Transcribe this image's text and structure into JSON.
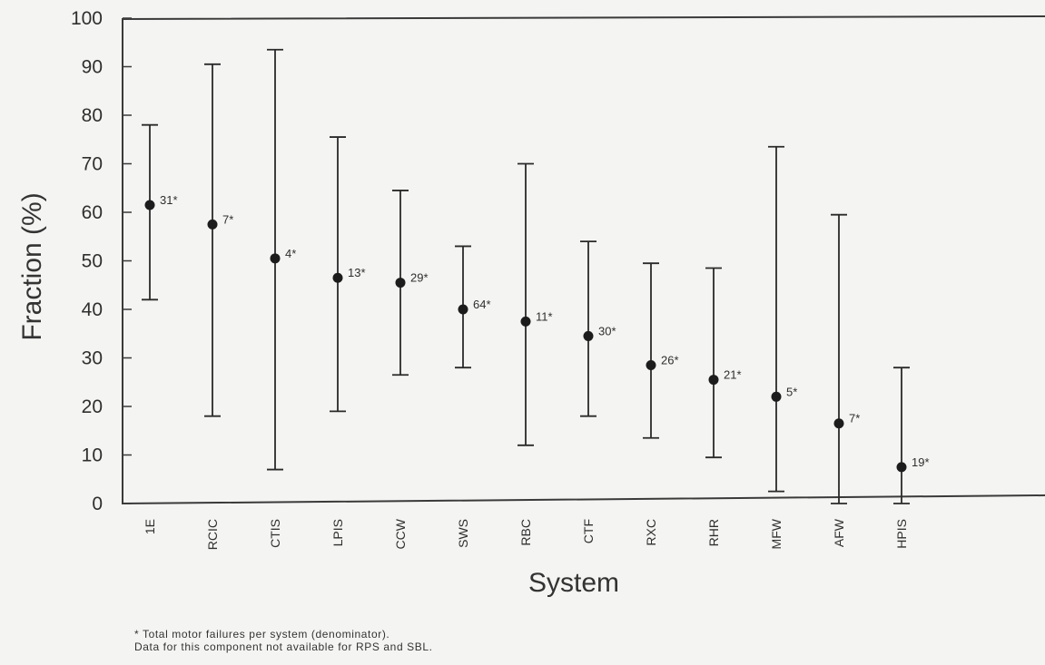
{
  "chart_data": {
    "type": "scatter",
    "xlabel": "System",
    "ylabel": "Fraction (%)",
    "ylim": [
      0,
      100
    ],
    "yticks": [
      0,
      10,
      20,
      30,
      40,
      50,
      60,
      70,
      80,
      90,
      100
    ],
    "grid": false,
    "error_bars": true,
    "points": [
      {
        "category": "1E",
        "value": 61.5,
        "low": 42,
        "high": 78,
        "label": "31*"
      },
      {
        "category": "RCIC",
        "value": 57.5,
        "low": 18,
        "high": 90.5,
        "label": "7*"
      },
      {
        "category": "CTIS",
        "value": 50.5,
        "low": 7,
        "high": 93.5,
        "label": "4*"
      },
      {
        "category": "LPIS",
        "value": 46.5,
        "low": 19,
        "high": 75.5,
        "label": "13*"
      },
      {
        "category": "CCW",
        "value": 45.5,
        "low": 26.5,
        "high": 64.5,
        "label": "29*"
      },
      {
        "category": "SWS",
        "value": 40,
        "low": 28,
        "high": 53,
        "label": "64*"
      },
      {
        "category": "RBC",
        "value": 37.5,
        "low": 12,
        "high": 70,
        "label": "11*"
      },
      {
        "category": "CTF",
        "value": 34.5,
        "low": 18,
        "high": 54,
        "label": "30*"
      },
      {
        "category": "RXC",
        "value": 28.5,
        "low": 13.5,
        "high": 49.5,
        "label": "26*"
      },
      {
        "category": "RHR",
        "value": 25.5,
        "low": 9.5,
        "high": 48.5,
        "label": "21*"
      },
      {
        "category": "MFW",
        "value": 22,
        "low": 2.5,
        "high": 73.5,
        "label": "5*"
      },
      {
        "category": "AFW",
        "value": 16.5,
        "low": 0,
        "high": 59.5,
        "label": "7*"
      },
      {
        "category": "HPIS",
        "value": 7.5,
        "low": 0,
        "high": 28,
        "label": "19*"
      }
    ]
  },
  "footnotes": {
    "line1": "* Total motor failures per system (denominator).",
    "line2": "Data for this component not available for RPS and SBL."
  }
}
